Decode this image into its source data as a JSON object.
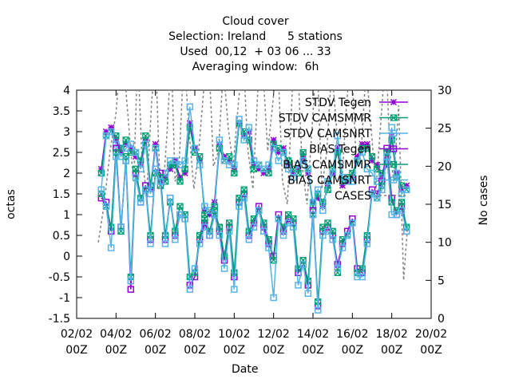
{
  "chart_data": {
    "type": "line",
    "title_lines": [
      "Cloud cover",
      "Selection: Ireland      5 stations",
      "Used  00,12  + 03 06 ... 33",
      "Averaging window:  6h"
    ],
    "xlabel": "Date",
    "ylabel": "octas",
    "y2label": "No cases",
    "xlim": [
      0,
      18
    ],
    "ylim": [
      -1.5,
      4
    ],
    "y2lim": [
      0,
      30
    ],
    "x_tick_labels": [
      {
        "x": 0,
        "line1": "02/02",
        "line2": "00Z"
      },
      {
        "x": 2,
        "line1": "04/02",
        "line2": "00Z"
      },
      {
        "x": 4,
        "line1": "06/02",
        "line2": "00Z"
      },
      {
        "x": 6,
        "line1": "08/02",
        "line2": "00Z"
      },
      {
        "x": 8,
        "line1": "10/02",
        "line2": "00Z"
      },
      {
        "x": 10,
        "line1": "12/02",
        "line2": "00Z"
      },
      {
        "x": 12,
        "line1": "14/02",
        "line2": "00Z"
      },
      {
        "x": 14,
        "line1": "16/02",
        "line2": "00Z"
      },
      {
        "x": 16,
        "line1": "18/02",
        "line2": "00Z"
      },
      {
        "x": 18,
        "line1": "20/02",
        "line2": "00Z"
      }
    ],
    "y_ticks": [
      "-1.5",
      "-1",
      "-0.5",
      "0",
      "0.5",
      "1",
      "1.5",
      "2",
      "2.5",
      "3",
      "3.5",
      "4"
    ],
    "y2_ticks": [
      "0",
      "5",
      "10",
      "15",
      "20",
      "25",
      "30"
    ],
    "grid": false,
    "legend_position": "top-right",
    "x": [
      1.25,
      1.5,
      1.75,
      2,
      2.25,
      2.5,
      2.75,
      3,
      3.25,
      3.5,
      3.75,
      4,
      4.25,
      4.5,
      4.75,
      5,
      5.25,
      5.5,
      5.75,
      6,
      6.25,
      6.5,
      6.75,
      7,
      7.25,
      7.5,
      7.75,
      8,
      8.25,
      8.5,
      8.75,
      9,
      9.25,
      9.5,
      9.75,
      10,
      10.25,
      10.5,
      10.75,
      11,
      11.25,
      11.5,
      11.75,
      12,
      12.25,
      12.5,
      12.75,
      13,
      13.25,
      13.5,
      13.75,
      14,
      14.25,
      14.5,
      14.75,
      15,
      15.25,
      15.5,
      15.75,
      16,
      16.25,
      16.5,
      16.75
    ],
    "series": [
      {
        "name": "STDV Tegen",
        "color": "#9400d3",
        "marker": "star",
        "axis": "y1",
        "values": [
          2.1,
          3.0,
          3.1,
          2.8,
          2.5,
          2.7,
          2.6,
          2.4,
          2.2,
          2.8,
          1.6,
          2.7,
          1.8,
          1.9,
          2.1,
          2.3,
          1.9,
          2.0,
          3.2,
          2.6,
          2.3,
          1.1,
          1.0,
          1.3,
          2.7,
          2.4,
          2.3,
          2.1,
          3.2,
          2.9,
          3.0,
          2.2,
          2.1,
          2.0,
          2.1,
          2.8,
          2.5,
          2.6,
          2.2,
          2.0,
          2.1,
          2.4,
          2.0,
          1.3,
          1.4,
          1.2,
          1.7,
          2.0,
          2.6,
          1.7,
          1.8,
          1.9,
          2.4,
          2.7,
          2.7,
          2.3,
          2.2,
          1.9,
          2.2,
          2.9,
          2.0,
          1.6,
          1.7
        ]
      },
      {
        "name": "STDV CAMSMMR",
        "color": "#009e73",
        "marker": "boxcross",
        "axis": "y1",
        "values": [
          2.0,
          2.9,
          3.0,
          2.9,
          2.6,
          2.8,
          2.5,
          2.5,
          2.3,
          2.9,
          1.7,
          2.6,
          1.7,
          1.8,
          2.2,
          2.2,
          1.8,
          2.1,
          3.1,
          2.5,
          2.4,
          1.0,
          1.1,
          1.2,
          2.6,
          2.3,
          2.4,
          2.0,
          3.2,
          3.0,
          2.8,
          2.1,
          2.2,
          2.1,
          2.0,
          2.7,
          2.6,
          2.5,
          2.3,
          2.1,
          2.0,
          2.5,
          2.1,
          1.2,
          1.5,
          1.3,
          1.6,
          2.1,
          2.5,
          1.8,
          1.9,
          2.0,
          2.3,
          2.6,
          2.6,
          2.4,
          2.1,
          2.0,
          2.3,
          2.8,
          1.9,
          1.7,
          1.6
        ]
      },
      {
        "name": "STDV CAMSNRT",
        "color": "#56b4e9",
        "marker": "box",
        "axis": "y1",
        "values": [
          1.6,
          2.9,
          3.0,
          2.7,
          2.4,
          2.6,
          2.7,
          2.5,
          2.1,
          2.7,
          1.5,
          2.6,
          1.8,
          2.0,
          2.3,
          2.3,
          2.2,
          2.3,
          3.6,
          2.6,
          2.2,
          1.2,
          1.1,
          1.1,
          2.8,
          2.3,
          2.2,
          2.2,
          3.3,
          2.8,
          3.1,
          2.3,
          2.2,
          2.1,
          2.2,
          2.6,
          2.3,
          2.5,
          2.1,
          1.9,
          2.2,
          2.3,
          2.1,
          1.3,
          1.6,
          1.1,
          1.8,
          2.0,
          2.9,
          1.9,
          1.8,
          1.8,
          2.3,
          2.5,
          2.1,
          2.0,
          1.8,
          1.9,
          2.3,
          3.1,
          2.0,
          1.5,
          1.6
        ]
      },
      {
        "name": "BIAS Tegen",
        "color": "#9400d3",
        "marker": "box",
        "axis": "y1",
        "values": [
          1.4,
          1.3,
          0.6,
          2.6,
          0.7,
          2.3,
          -0.8,
          2.0,
          1.3,
          1.7,
          0.4,
          2.1,
          2.0,
          0.4,
          1.4,
          0.5,
          1.0,
          0.9,
          -0.7,
          -0.5,
          0.4,
          0.8,
          0.5,
          1.0,
          0.6,
          -0.1,
          0.7,
          -0.5,
          1.3,
          1.5,
          0.5,
          0.8,
          1.2,
          0.7,
          0.3,
          0.0,
          1.0,
          0.6,
          0.9,
          0.8,
          -0.4,
          -0.2,
          -0.7,
          1.1,
          -1.2,
          0.6,
          0.7,
          0.5,
          -0.2,
          0.3,
          0.6,
          0.9,
          -0.3,
          -0.4,
          0.4,
          1.6,
          1.5,
          1.8,
          2.6,
          1.4,
          1.0,
          1.2,
          0.6
        ]
      },
      {
        "name": "BIAS CAMSMMR",
        "color": "#009e73",
        "marker": "boxcross",
        "axis": "y1",
        "values": [
          1.5,
          1.2,
          0.7,
          2.5,
          0.6,
          2.4,
          -0.5,
          2.1,
          1.4,
          1.6,
          0.5,
          2.0,
          1.9,
          0.5,
          1.3,
          0.6,
          1.2,
          1.0,
          -0.5,
          -0.4,
          0.5,
          0.9,
          0.6,
          1.1,
          0.7,
          0.0,
          0.8,
          -0.4,
          1.4,
          1.6,
          0.6,
          0.9,
          1.1,
          0.8,
          0.4,
          -0.1,
          0.9,
          0.7,
          1.0,
          0.9,
          -0.3,
          -0.1,
          -0.6,
          1.0,
          -1.1,
          0.7,
          0.8,
          0.6,
          -0.4,
          0.4,
          0.5,
          0.8,
          -0.4,
          -0.3,
          0.5,
          1.5,
          1.4,
          1.7,
          2.5,
          1.3,
          1.1,
          1.3,
          0.7
        ]
      },
      {
        "name": "BIAS CAMSNRT",
        "color": "#56b4e9",
        "marker": "box",
        "axis": "y1",
        "values": [
          1.6,
          1.2,
          0.2,
          2.4,
          0.7,
          2.3,
          -0.6,
          1.9,
          1.3,
          1.6,
          0.3,
          2.1,
          1.8,
          0.3,
          1.4,
          0.4,
          1.0,
          0.9,
          -0.8,
          -0.3,
          0.3,
          0.7,
          0.5,
          1.0,
          0.5,
          -0.3,
          0.6,
          -0.8,
          1.2,
          1.4,
          0.4,
          0.7,
          1.1,
          0.6,
          0.2,
          -1.0,
          0.9,
          0.5,
          0.8,
          0.7,
          -0.7,
          -0.2,
          -0.9,
          1.0,
          -1.3,
          0.5,
          0.6,
          0.4,
          -0.3,
          0.2,
          0.5,
          0.8,
          -0.5,
          -0.5,
          0.3,
          1.5,
          1.4,
          1.6,
          2.4,
          1.0,
          1.0,
          1.1,
          0.6
        ]
      },
      {
        "name": "CASES",
        "color": "#808080",
        "marker": "none",
        "dash": true,
        "axis": "y2",
        "x": [
          1.1,
          1.4,
          1.7,
          2.0,
          2.25,
          2.5,
          2.75,
          2.9,
          3.1,
          3.3,
          3.55,
          3.8,
          4.0,
          4.2,
          4.4,
          4.6,
          4.8,
          5.0,
          5.2,
          5.45,
          5.7,
          5.95,
          6.2,
          6.45,
          6.7,
          6.95,
          7.2,
          7.45,
          7.7,
          7.95,
          8.2,
          8.45,
          8.7,
          8.95,
          9.2,
          9.45,
          9.7,
          9.95,
          10.2,
          10.45,
          10.7,
          10.95,
          11.2,
          11.45,
          11.7,
          11.95,
          12.2,
          12.45,
          12.7,
          12.95,
          13.2,
          13.45,
          13.7,
          13.95,
          14.2,
          14.45,
          14.7,
          14.95,
          15.2,
          15.45,
          15.7,
          15.9,
          16.1,
          16.35,
          16.6,
          16.8
        ],
        "values": [
          10,
          15,
          22,
          27,
          35,
          30,
          22,
          18,
          35,
          22,
          16,
          28,
          35,
          20,
          17,
          25,
          35,
          18,
          20,
          35,
          25,
          17,
          22,
          30,
          35,
          20,
          22,
          33,
          25,
          20,
          28,
          35,
          22,
          17,
          30,
          33,
          22,
          28,
          35,
          18,
          15,
          30,
          35,
          20,
          15,
          25,
          35,
          17,
          22,
          33,
          25,
          17,
          28,
          35,
          20,
          22,
          33,
          25,
          17,
          26,
          35,
          22,
          18,
          28,
          5,
          12
        ]
      }
    ]
  }
}
